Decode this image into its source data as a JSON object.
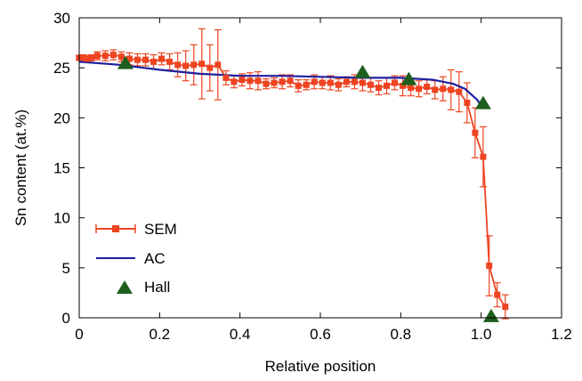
{
  "chart_data": {
    "type": "line",
    "xlabel": "Relative position",
    "ylabel": "Sn content (at.%)",
    "xlim": [
      0,
      1.2
    ],
    "ylim": [
      0,
      30
    ],
    "xticks": [
      0,
      0.2,
      0.4,
      0.6,
      0.8,
      1.0,
      1.2
    ],
    "xtick_labels": [
      "0",
      "0.2",
      "0.4",
      "0.6",
      "0.8",
      "1.0",
      "1.2"
    ],
    "yticks": [
      0,
      5,
      10,
      15,
      20,
      25,
      30
    ],
    "ytick_labels": [
      "0",
      "5",
      "10",
      "15",
      "20",
      "25",
      "30"
    ],
    "grid": false,
    "legend": {
      "position": "bottom-left",
      "entries": [
        "SEM",
        "AC",
        "Hall"
      ]
    },
    "series": [
      {
        "name": "SEM",
        "style": "line-with-square-markers-and-errorbars",
        "color": "#ee4422",
        "points": [
          [
            0.0,
            26.0,
            0.2
          ],
          [
            0.01,
            26.0,
            0.3
          ],
          [
            0.02,
            25.9,
            0.3
          ],
          [
            0.03,
            26.0,
            0.3
          ],
          [
            0.045,
            26.2,
            0.4
          ],
          [
            0.065,
            26.2,
            0.5
          ],
          [
            0.085,
            26.3,
            0.5
          ],
          [
            0.105,
            26.1,
            0.5
          ],
          [
            0.125,
            25.9,
            0.6
          ],
          [
            0.145,
            25.8,
            0.6
          ],
          [
            0.165,
            25.8,
            0.6
          ],
          [
            0.185,
            25.6,
            0.7
          ],
          [
            0.205,
            25.9,
            0.6
          ],
          [
            0.225,
            25.6,
            0.8
          ],
          [
            0.245,
            25.3,
            1.2
          ],
          [
            0.265,
            25.2,
            1.5
          ],
          [
            0.285,
            25.3,
            2.0
          ],
          [
            0.305,
            25.4,
            3.5
          ],
          [
            0.325,
            25.0,
            2.3
          ],
          [
            0.345,
            25.3,
            3.5
          ],
          [
            0.365,
            24.0,
            0.7
          ],
          [
            0.385,
            23.6,
            0.6
          ],
          [
            0.405,
            23.8,
            0.6
          ],
          [
            0.425,
            23.7,
            0.8
          ],
          [
            0.445,
            23.7,
            0.9
          ],
          [
            0.465,
            23.4,
            0.5
          ],
          [
            0.485,
            23.5,
            0.5
          ],
          [
            0.505,
            23.6,
            0.7
          ],
          [
            0.525,
            23.7,
            0.6
          ],
          [
            0.545,
            23.2,
            0.6
          ],
          [
            0.565,
            23.3,
            0.5
          ],
          [
            0.585,
            23.6,
            0.7
          ],
          [
            0.605,
            23.5,
            0.6
          ],
          [
            0.625,
            23.5,
            0.7
          ],
          [
            0.645,
            23.3,
            0.6
          ],
          [
            0.665,
            23.6,
            0.5
          ],
          [
            0.685,
            23.6,
            0.7
          ],
          [
            0.705,
            23.5,
            0.8
          ],
          [
            0.725,
            23.3,
            0.7
          ],
          [
            0.745,
            23.0,
            0.7
          ],
          [
            0.765,
            23.2,
            0.8
          ],
          [
            0.785,
            23.5,
            0.7
          ],
          [
            0.805,
            23.2,
            1.0
          ],
          [
            0.825,
            23.0,
            0.8
          ],
          [
            0.845,
            22.9,
            0.8
          ],
          [
            0.865,
            23.1,
            0.7
          ],
          [
            0.885,
            22.8,
            0.9
          ],
          [
            0.905,
            22.9,
            1.2
          ],
          [
            0.925,
            22.8,
            2.0
          ],
          [
            0.945,
            22.6,
            2.0
          ],
          [
            0.965,
            21.5,
            2.0
          ],
          [
            0.985,
            18.5,
            2.5
          ],
          [
            1.005,
            16.1,
            3.0
          ],
          [
            1.02,
            5.2,
            3.0
          ],
          [
            1.04,
            2.3,
            1.2
          ],
          [
            1.06,
            1.1,
            1.2
          ]
        ]
      },
      {
        "name": "AC",
        "style": "line",
        "color": "#1f1f9e",
        "x": [
          0.0,
          0.1,
          0.2,
          0.3,
          0.4,
          0.5,
          0.6,
          0.7,
          0.8,
          0.88,
          0.93,
          0.96,
          0.99,
          1.0
        ],
        "y": [
          25.6,
          25.3,
          24.8,
          24.4,
          24.2,
          24.2,
          24.1,
          24.0,
          24.0,
          23.8,
          23.4,
          22.9,
          21.8,
          21.2
        ]
      },
      {
        "name": "Hall",
        "style": "triangle-markers",
        "color": "#1e5f1e",
        "x": [
          0.115,
          0.705,
          0.82,
          1.005,
          1.025
        ],
        "y": [
          25.4,
          24.5,
          23.8,
          21.4,
          0.1
        ]
      }
    ]
  }
}
